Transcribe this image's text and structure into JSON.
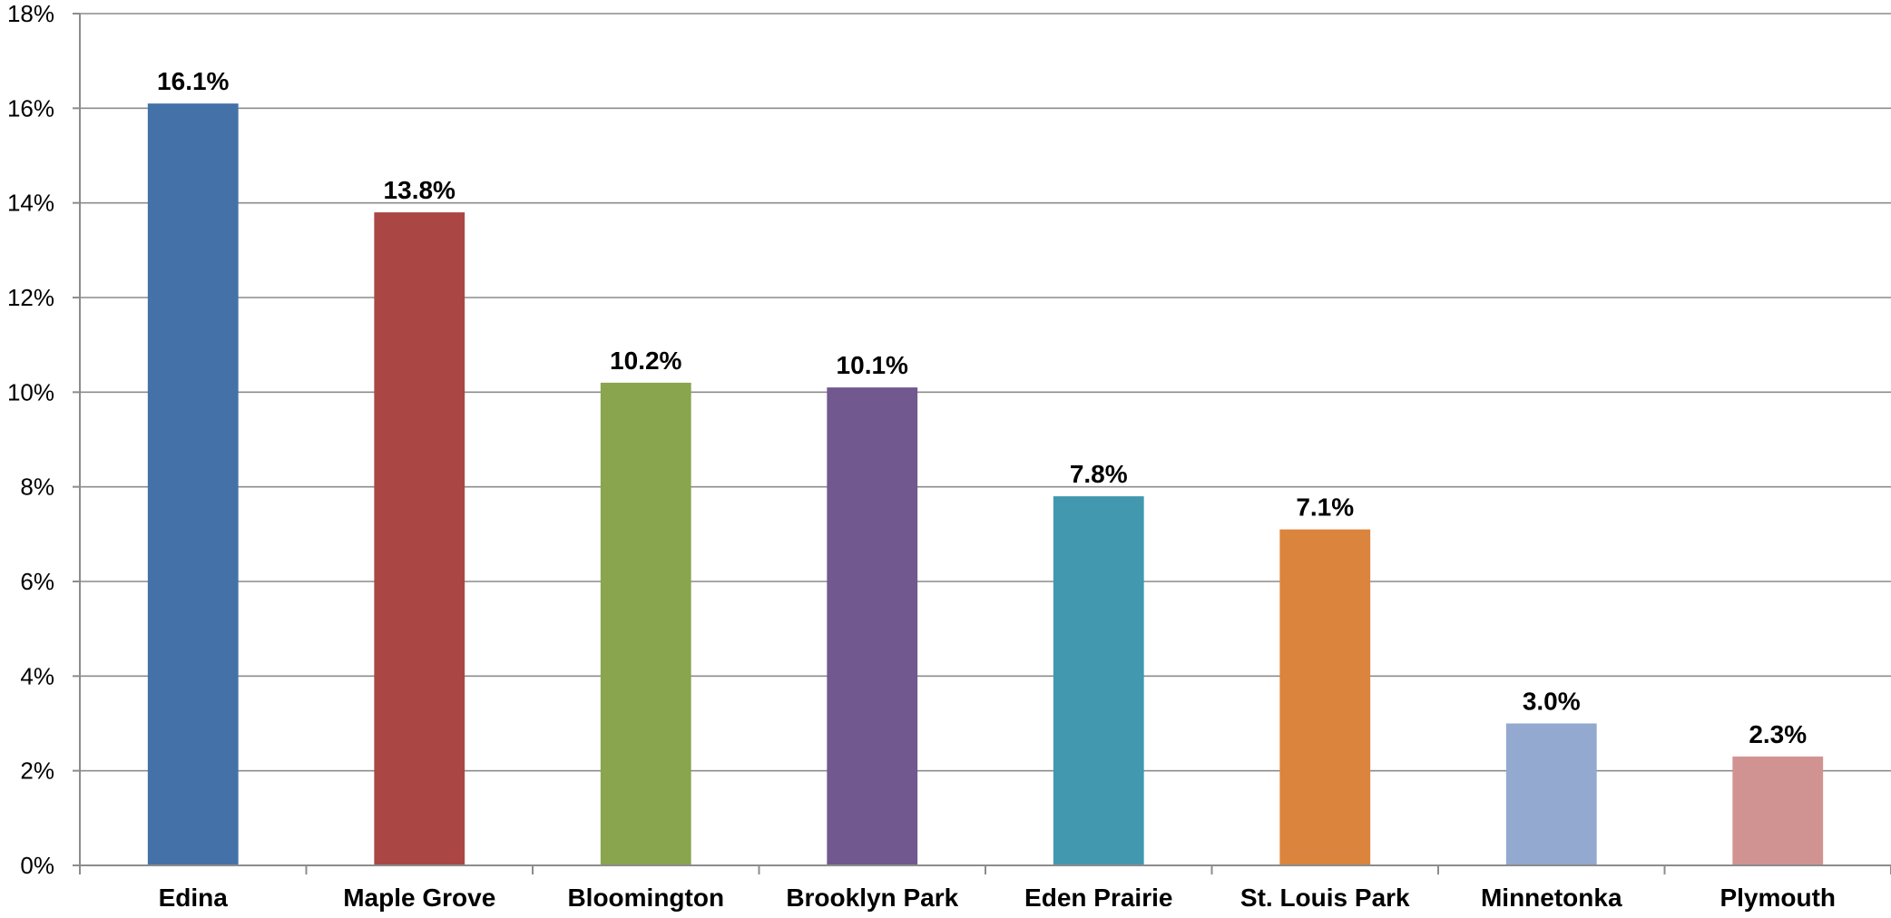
{
  "chart_data": {
    "type": "bar",
    "title": "",
    "xlabel": "",
    "ylabel": "",
    "categories": [
      "Edina",
      "Maple Grove",
      "Bloomington",
      "Brooklyn Park",
      "Eden Prairie",
      "St. Louis Park",
      "Minnetonka",
      "Plymouth"
    ],
    "values": [
      16.1,
      13.8,
      10.2,
      10.1,
      7.8,
      7.1,
      3.0,
      2.3
    ],
    "data_labels": [
      "16.1%",
      "13.8%",
      "10.2%",
      "10.1%",
      "7.8%",
      "7.1%",
      "3.0%",
      "2.3%"
    ],
    "colors": [
      "#4472a8",
      "#aa4744",
      "#89a54e",
      "#71588f",
      "#4198af",
      "#db843d",
      "#93a9cf",
      "#d19392"
    ],
    "ylim": [
      0,
      18
    ],
    "yticks": [
      0,
      2,
      4,
      6,
      8,
      10,
      12,
      14,
      16,
      18
    ],
    "ytick_labels": [
      "0%",
      "2%",
      "4%",
      "6%",
      "8%",
      "10%",
      "12%",
      "14%",
      "16%",
      "18%"
    ],
    "grid": true,
    "legend": "none"
  }
}
